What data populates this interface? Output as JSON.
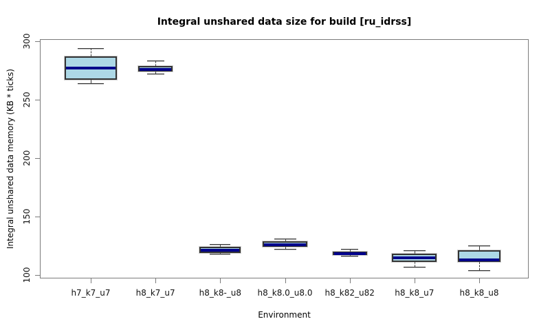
{
  "chart_data": {
    "type": "boxplot",
    "title": "Integral unshared data size for build [ru_idrss]",
    "xlabel": "Environment",
    "ylabel": "Integral unshared data memory (KB * ticks)",
    "ylim": [
      100,
      300
    ],
    "yticks": [
      100,
      150,
      200,
      250,
      300
    ],
    "grid": false,
    "categories": [
      "h7_k7_u7",
      "h8_k7_u7",
      "h8_k8-_u8",
      "h8_k8.0_u8.0",
      "h8_k82_u82",
      "h8_k8_u7",
      "h8_k8_u8"
    ],
    "boxes": [
      {
        "label": "h7_k7_u7",
        "whisker_low": 264,
        "q1": 267,
        "median": 277,
        "q3": 287,
        "whisker_high": 294,
        "rel_width": 0.81
      },
      {
        "label": "h8_k7_u7",
        "whisker_low": 272,
        "q1": 274,
        "median": 276,
        "q3": 279,
        "whisker_high": 283,
        "rel_width": 0.53
      },
      {
        "label": "h8_k8-_u8",
        "whisker_low": 118,
        "q1": 119,
        "median": 121,
        "q3": 124,
        "whisker_high": 126,
        "rel_width": 0.64
      },
      {
        "label": "h8_k8.0_u8.0",
        "whisker_low": 122,
        "q1": 124,
        "median": 126,
        "q3": 129,
        "whisker_high": 131,
        "rel_width": 0.68
      },
      {
        "label": "h8_k82_u82",
        "whisker_low": 116,
        "q1": 117,
        "median": 118,
        "q3": 120,
        "whisker_high": 122,
        "rel_width": 0.53
      },
      {
        "label": "h8_k8_u7",
        "whisker_low": 107,
        "q1": 111,
        "median": 115,
        "q3": 118,
        "whisker_high": 121,
        "rel_width": 0.69
      },
      {
        "label": "h8_k8_u8",
        "whisker_low": 104,
        "q1": 111,
        "median": 113,
        "q3": 121,
        "whisker_high": 125,
        "rel_width": 0.66
      }
    ],
    "colors": {
      "box_fill": "#ADD8E6",
      "median": "#00008B",
      "line": "#333333",
      "frame": "#7a7a7a",
      "background": "#ffffff"
    }
  }
}
